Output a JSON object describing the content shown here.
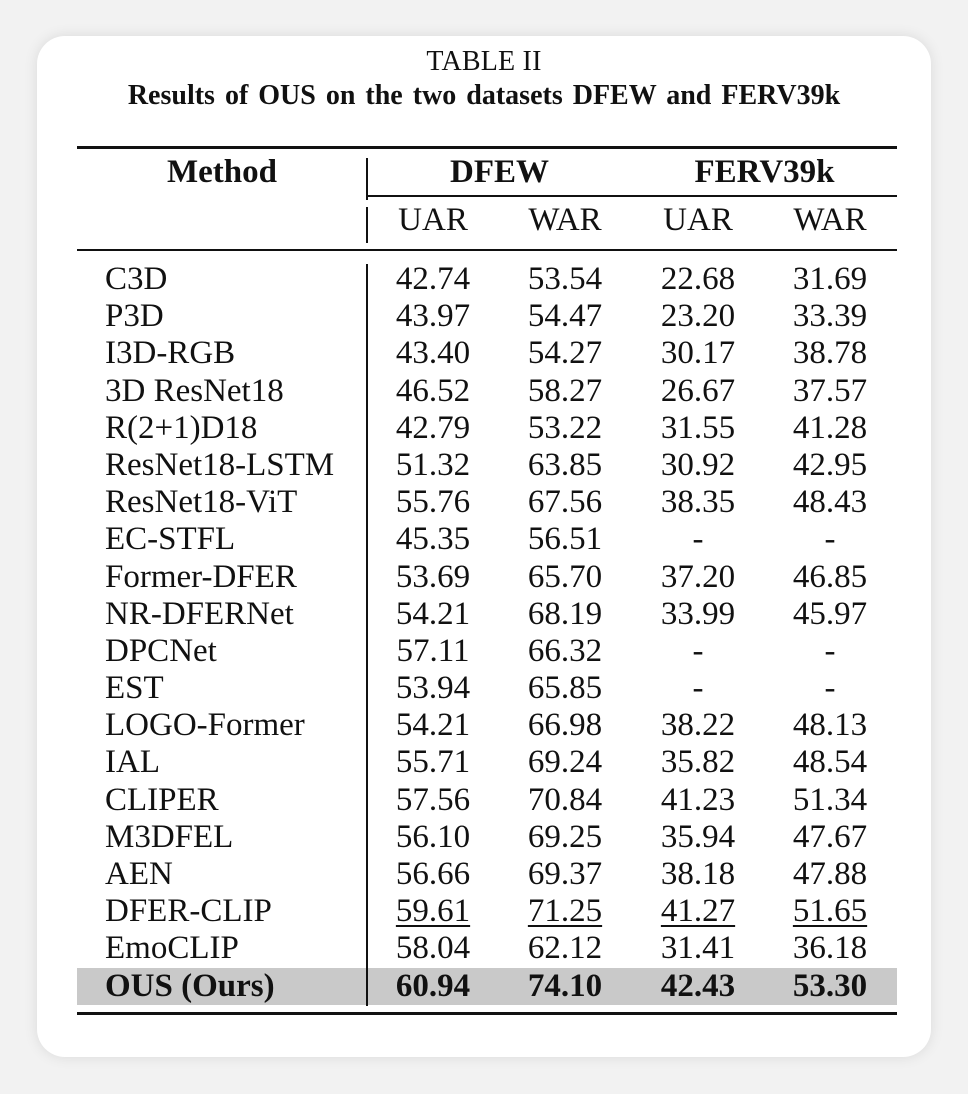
{
  "caption": {
    "label": "TABLE II",
    "title": "Results of OUS on the two datasets DFEW and FERV39k"
  },
  "header": {
    "method": "Method",
    "groups": [
      "DFEW",
      "FERV39k"
    ],
    "subcols": [
      "UAR",
      "WAR",
      "UAR",
      "WAR"
    ]
  },
  "rows": [
    {
      "method": "C3D",
      "values": [
        "42.74",
        "53.54",
        "22.68",
        "31.69"
      ]
    },
    {
      "method": "P3D",
      "values": [
        "43.97",
        "54.47",
        "23.20",
        "33.39"
      ]
    },
    {
      "method": "I3D-RGB",
      "values": [
        "43.40",
        "54.27",
        "30.17",
        "38.78"
      ]
    },
    {
      "method": "3D ResNet18",
      "values": [
        "46.52",
        "58.27",
        "26.67",
        "37.57"
      ]
    },
    {
      "method": "R(2+1)D18",
      "values": [
        "42.79",
        "53.22",
        "31.55",
        "41.28"
      ]
    },
    {
      "method": "ResNet18-LSTM",
      "values": [
        "51.32",
        "63.85",
        "30.92",
        "42.95"
      ]
    },
    {
      "method": "ResNet18-ViT",
      "values": [
        "55.76",
        "67.56",
        "38.35",
        "48.43"
      ]
    },
    {
      "method": "EC-STFL",
      "values": [
        "45.35",
        "56.51",
        "-",
        "-"
      ]
    },
    {
      "method": "Former-DFER",
      "values": [
        "53.69",
        "65.70",
        "37.20",
        "46.85"
      ]
    },
    {
      "method": "NR-DFERNet",
      "values": [
        "54.21",
        "68.19",
        "33.99",
        "45.97"
      ]
    },
    {
      "method": "DPCNet",
      "values": [
        "57.11",
        "66.32",
        "-",
        "-"
      ]
    },
    {
      "method": "EST",
      "values": [
        "53.94",
        "65.85",
        "-",
        "-"
      ]
    },
    {
      "method": "LOGO-Former",
      "values": [
        "54.21",
        "66.98",
        "38.22",
        "48.13"
      ]
    },
    {
      "method": "IAL",
      "values": [
        "55.71",
        "69.24",
        "35.82",
        "48.54"
      ]
    },
    {
      "method": "CLIPER",
      "values": [
        "57.56",
        "70.84",
        "41.23",
        "51.34"
      ]
    },
    {
      "method": "M3DFEL",
      "values": [
        "56.10",
        "69.25",
        "35.94",
        "47.67"
      ]
    },
    {
      "method": "AEN",
      "values": [
        "56.66",
        "69.37",
        "38.18",
        "47.88"
      ]
    },
    {
      "method": "DFER-CLIP",
      "values": [
        "59.61",
        "71.25",
        "41.27",
        "51.65"
      ]
    },
    {
      "method": "EmoCLIP",
      "values": [
        "58.04",
        "62.12",
        "31.41",
        "36.18"
      ]
    },
    {
      "method": "OUS (Ours)",
      "values": [
        "60.94",
        "74.10",
        "42.43",
        "53.30"
      ]
    }
  ],
  "styles": {
    "underlined_row": "DFER-CLIP",
    "highlighted_row": "OUS (Ours)",
    "highlight_color": "#c9c9c9"
  }
}
